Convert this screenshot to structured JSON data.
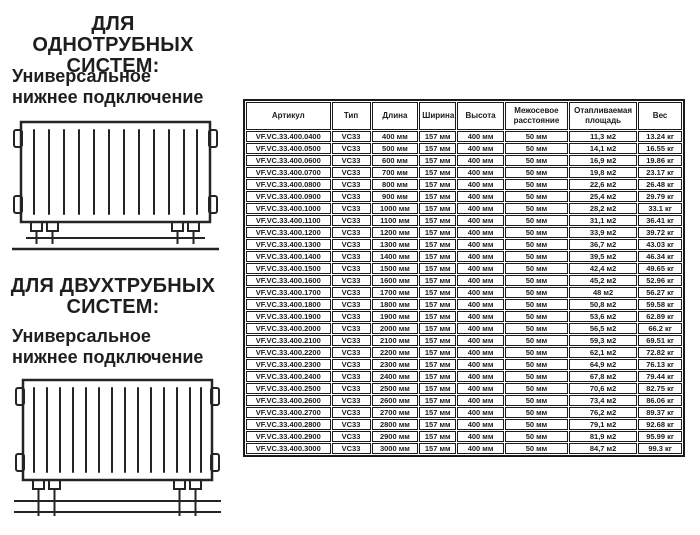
{
  "colors": {
    "background": "#ffffff",
    "text": "#1e1e1e",
    "table_border": "#1a1a1a"
  },
  "left_panel": {
    "single_pipe": {
      "heading_line1": "ДЛЯ ОДНОТРУБНЫХ",
      "heading_line2": "СИСТЕМ:",
      "subheading_line1": "Универсальное",
      "subheading_line2": "нижнее подключение",
      "diagram": "radiator-universal-bottom-connection-single-pipe"
    },
    "two_pipe": {
      "heading_line1": "ДЛЯ ДВУХТРУБНЫХ",
      "heading_line2": "СИСТЕМ:",
      "subheading_line1": "Универсальное",
      "subheading_line2": "нижнее подключение",
      "diagram": "radiator-universal-bottom-connection-two-pipe"
    }
  },
  "table": {
    "headers": [
      "Артикул",
      "Тип",
      "Длина",
      "Ширина",
      "Высота",
      "Межосевое расстояние",
      "Отапливаемая площадь",
      "Вес"
    ],
    "rows": [
      [
        "VF.VC.33.400.0400",
        "VC33",
        "400 мм",
        "157 мм",
        "400 мм",
        "50 мм",
        "11,3 м2",
        "13.24 кг"
      ],
      [
        "VF.VC.33.400.0500",
        "VC33",
        "500 мм",
        "157 мм",
        "400 мм",
        "50 мм",
        "14,1 м2",
        "16.55 кг"
      ],
      [
        "VF.VC.33.400.0600",
        "VC33",
        "600 мм",
        "157 мм",
        "400 мм",
        "50 мм",
        "16,9 м2",
        "19.86 кг"
      ],
      [
        "VF.VC.33.400.0700",
        "VC33",
        "700 мм",
        "157 мм",
        "400 мм",
        "50 мм",
        "19,8 м2",
        "23.17 кг"
      ],
      [
        "VF.VC.33.400.0800",
        "VC33",
        "800 мм",
        "157 мм",
        "400 мм",
        "50 мм",
        "22,6 м2",
        "26.48 кг"
      ],
      [
        "VF.VC.33.400.0900",
        "VC33",
        "900 мм",
        "157 мм",
        "400 мм",
        "50 мм",
        "25,4 м2",
        "29.79 кг"
      ],
      [
        "VF.VC.33.400.1000",
        "VC33",
        "1000 мм",
        "157 мм",
        "400 мм",
        "50 мм",
        "28,2 м2",
        "33.1 кг"
      ],
      [
        "VF.VC.33.400.1100",
        "VC33",
        "1100 мм",
        "157 мм",
        "400 мм",
        "50 мм",
        "31,1 м2",
        "36.41 кг"
      ],
      [
        "VF.VC.33.400.1200",
        "VC33",
        "1200 мм",
        "157 мм",
        "400 мм",
        "50 мм",
        "33,9 м2",
        "39.72 кг"
      ],
      [
        "VF.VC.33.400.1300",
        "VC33",
        "1300 мм",
        "157 мм",
        "400 мм",
        "50 мм",
        "36,7 м2",
        "43.03 кг"
      ],
      [
        "VF.VC.33.400.1400",
        "VC33",
        "1400 мм",
        "157 мм",
        "400 мм",
        "50 мм",
        "39,5 м2",
        "46.34 кг"
      ],
      [
        "VF.VC.33.400.1500",
        "VC33",
        "1500 мм",
        "157 мм",
        "400 мм",
        "50 мм",
        "42,4 м2",
        "49.65 кг"
      ],
      [
        "VF.VC.33.400.1600",
        "VC33",
        "1600 мм",
        "157 мм",
        "400 мм",
        "50 мм",
        "45,2 м2",
        "52.96 кг"
      ],
      [
        "VF.VC.33.400.1700",
        "VC33",
        "1700 мм",
        "157 мм",
        "400 мм",
        "50 мм",
        "48 м2",
        "56.27 кг"
      ],
      [
        "VF.VC.33.400.1800",
        "VC33",
        "1800 мм",
        "157 мм",
        "400 мм",
        "50 мм",
        "50,8 м2",
        "59.58 кг"
      ],
      [
        "VF.VC.33.400.1900",
        "VC33",
        "1900 мм",
        "157 мм",
        "400 мм",
        "50 мм",
        "53,6 м2",
        "62.89 кг"
      ],
      [
        "VF.VC.33.400.2000",
        "VC33",
        "2000 мм",
        "157 мм",
        "400 мм",
        "50 мм",
        "56,5 м2",
        "66.2 кг"
      ],
      [
        "VF.VC.33.400.2100",
        "VC33",
        "2100 мм",
        "157 мм",
        "400 мм",
        "50 мм",
        "59,3 м2",
        "69.51 кг"
      ],
      [
        "VF.VC.33.400.2200",
        "VC33",
        "2200 мм",
        "157 мм",
        "400 мм",
        "50 мм",
        "62,1 м2",
        "72.82 кг"
      ],
      [
        "VF.VC.33.400.2300",
        "VC33",
        "2300 мм",
        "157 мм",
        "400 мм",
        "50 мм",
        "64,9 м2",
        "76.13 кг"
      ],
      [
        "VF.VC.33.400.2400",
        "VC33",
        "2400 мм",
        "157 мм",
        "400 мм",
        "50 мм",
        "67,8 м2",
        "79.44 кг"
      ],
      [
        "VF.VC.33.400.2500",
        "VC33",
        "2500 мм",
        "157 мм",
        "400 мм",
        "50 мм",
        "70,6 м2",
        "82.75 кг"
      ],
      [
        "VF.VC.33.400.2600",
        "VC33",
        "2600 мм",
        "157 мм",
        "400 мм",
        "50 мм",
        "73,4 м2",
        "86.06 кг"
      ],
      [
        "VF.VC.33.400.2700",
        "VC33",
        "2700 мм",
        "157 мм",
        "400 мм",
        "50 мм",
        "76,2 м2",
        "89.37 кг"
      ],
      [
        "VF.VC.33.400.2800",
        "VC33",
        "2800 мм",
        "157 мм",
        "400 мм",
        "50 мм",
        "79,1 м2",
        "92.68 кг"
      ],
      [
        "VF.VC.33.400.2900",
        "VC33",
        "2900 мм",
        "157 мм",
        "400 мм",
        "50 мм",
        "81,9 м2",
        "95.99 кг"
      ],
      [
        "VF.VC.33.400.3000",
        "VC33",
        "3000 мм",
        "157 мм",
        "400 мм",
        "50 мм",
        "84,7 м2",
        "99.3 кг"
      ]
    ]
  }
}
